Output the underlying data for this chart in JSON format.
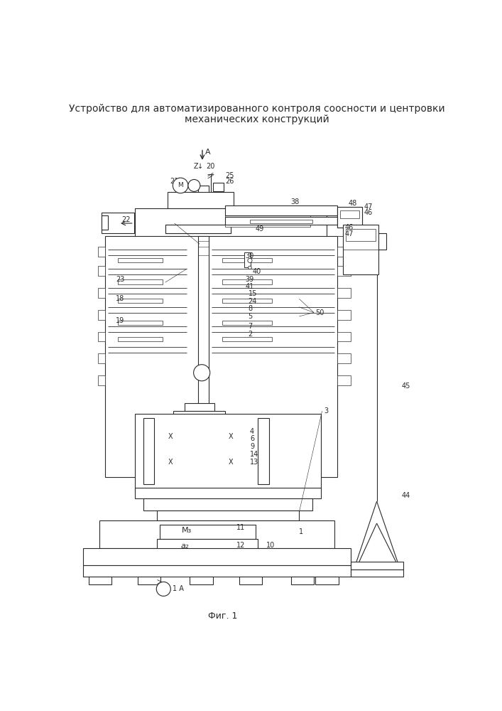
{
  "title_line1": "Устройство для автоматизированного контроля соосности и центровки",
  "title_line2": "механических конструкций",
  "fig_label": "Фиг. 1",
  "bg_color": "#ffffff",
  "lc": "#2a2a2a",
  "lw": 0.8,
  "fs": 7.5
}
